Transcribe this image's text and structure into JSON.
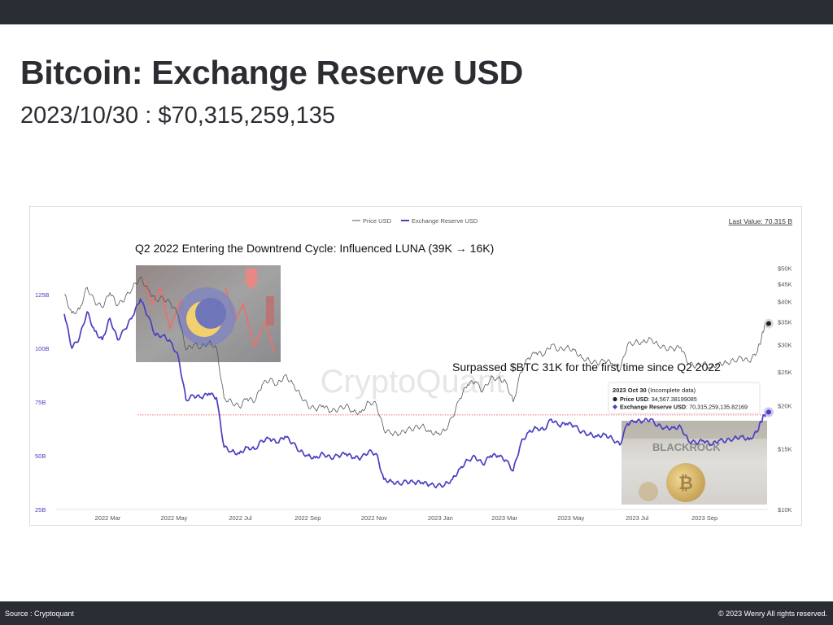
{
  "page": {
    "title": "Bitcoin: Exchange Reserve USD",
    "subtitle": "2023/10/30 : $70,315,259,135",
    "footer_source": "Source : Cryptoquant",
    "footer_copyright": "© 2023 Wenry All rights reserved."
  },
  "chart_data": {
    "type": "line",
    "title": "",
    "watermark": "CryptoQuant",
    "last_value_label": "Last Value: 70.315 B",
    "legend_position": "top-center",
    "grid": false,
    "x_range": [
      "2022-01-20",
      "2023-10-30"
    ],
    "x_ticks": [
      {
        "date": "2022-03-01",
        "label": "2022 Mar"
      },
      {
        "date": "2022-05-01",
        "label": "2022 May"
      },
      {
        "date": "2022-07-01",
        "label": "2022 Jul"
      },
      {
        "date": "2022-09-01",
        "label": "2022 Sep"
      },
      {
        "date": "2022-11-01",
        "label": "2022 Nov"
      },
      {
        "date": "2023-01-01",
        "label": "2023 Jan"
      },
      {
        "date": "2023-03-01",
        "label": "2023 Mar"
      },
      {
        "date": "2023-05-01",
        "label": "2023 May"
      },
      {
        "date": "2023-07-01",
        "label": "2023 Jul"
      },
      {
        "date": "2023-09-01",
        "label": "2023 Sep"
      }
    ],
    "y_left": {
      "label": "",
      "range": [
        25,
        150
      ],
      "ticks": [
        {
          "v": 25,
          "label": "25B"
        },
        {
          "v": 50,
          "label": "50B"
        },
        {
          "v": 75,
          "label": "75B"
        },
        {
          "v": 100,
          "label": "100B"
        },
        {
          "v": 125,
          "label": "125B"
        }
      ]
    },
    "y_right": {
      "label": "",
      "scale": "log",
      "range": [
        10000,
        60000
      ],
      "ticks": [
        {
          "v": 10000,
          "label": "$10K"
        },
        {
          "v": 15000,
          "label": "$15K"
        },
        {
          "v": 20000,
          "label": "$20K"
        },
        {
          "v": 25000,
          "label": "$25K"
        },
        {
          "v": 30000,
          "label": "$30K"
        },
        {
          "v": 35000,
          "label": "$35K"
        },
        {
          "v": 40000,
          "label": "$40K"
        },
        {
          "v": 45000,
          "label": "$45K"
        },
        {
          "v": 50000,
          "label": "$50K"
        }
      ]
    },
    "series": [
      {
        "name": "Price USD",
        "color": "#555555",
        "axis": "right",
        "points": [
          [
            "2022-01-20",
            42000
          ],
          [
            "2022-01-27",
            37000
          ],
          [
            "2022-02-03",
            38000
          ],
          [
            "2022-02-10",
            44000
          ],
          [
            "2022-02-17",
            40000
          ],
          [
            "2022-02-24",
            38500
          ],
          [
            "2022-03-03",
            42500
          ],
          [
            "2022-03-10",
            39000
          ],
          [
            "2022-03-17",
            41000
          ],
          [
            "2022-03-24",
            44000
          ],
          [
            "2022-03-31",
            47000
          ],
          [
            "2022-04-07",
            43500
          ],
          [
            "2022-04-14",
            40500
          ],
          [
            "2022-04-21",
            41000
          ],
          [
            "2022-04-28",
            39500
          ],
          [
            "2022-05-05",
            36500
          ],
          [
            "2022-05-12",
            29000
          ],
          [
            "2022-05-19",
            30000
          ],
          [
            "2022-05-26",
            29500
          ],
          [
            "2022-06-02",
            30500
          ],
          [
            "2022-06-09",
            29500
          ],
          [
            "2022-06-16",
            21000
          ],
          [
            "2022-06-23",
            20500
          ],
          [
            "2022-06-30",
            19800
          ],
          [
            "2022-07-07",
            21000
          ],
          [
            "2022-07-14",
            20500
          ],
          [
            "2022-07-21",
            23000
          ],
          [
            "2022-07-28",
            23800
          ],
          [
            "2022-08-04",
            23000
          ],
          [
            "2022-08-11",
            24500
          ],
          [
            "2022-08-18",
            23200
          ],
          [
            "2022-08-25",
            21500
          ],
          [
            "2022-09-01",
            20000
          ],
          [
            "2022-09-08",
            19500
          ],
          [
            "2022-09-15",
            20000
          ],
          [
            "2022-09-22",
            19200
          ],
          [
            "2022-09-29",
            19500
          ],
          [
            "2022-10-06",
            20000
          ],
          [
            "2022-10-13",
            19200
          ],
          [
            "2022-10-20",
            19100
          ],
          [
            "2022-10-27",
            20500
          ],
          [
            "2022-11-03",
            20200
          ],
          [
            "2022-11-10",
            17000
          ],
          [
            "2022-11-17",
            16600
          ],
          [
            "2022-11-24",
            16500
          ],
          [
            "2022-12-01",
            17000
          ],
          [
            "2022-12-08",
            17200
          ],
          [
            "2022-12-15",
            17500
          ],
          [
            "2022-12-22",
            16800
          ],
          [
            "2022-12-29",
            16600
          ],
          [
            "2023-01-05",
            16900
          ],
          [
            "2023-01-12",
            18500
          ],
          [
            "2023-01-19",
            21000
          ],
          [
            "2023-01-26",
            23000
          ],
          [
            "2023-02-02",
            23500
          ],
          [
            "2023-02-09",
            22000
          ],
          [
            "2023-02-16",
            24000
          ],
          [
            "2023-02-23",
            24000
          ],
          [
            "2023-03-02",
            23500
          ],
          [
            "2023-03-09",
            20500
          ],
          [
            "2023-03-16",
            25000
          ],
          [
            "2023-03-23",
            27500
          ],
          [
            "2023-03-30",
            28500
          ],
          [
            "2023-04-06",
            28000
          ],
          [
            "2023-04-13",
            30000
          ],
          [
            "2023-04-20",
            29000
          ],
          [
            "2023-04-27",
            29500
          ],
          [
            "2023-05-04",
            29000
          ],
          [
            "2023-05-11",
            27500
          ],
          [
            "2023-05-18",
            27000
          ],
          [
            "2023-05-25",
            26500
          ],
          [
            "2023-06-01",
            27000
          ],
          [
            "2023-06-08",
            26500
          ],
          [
            "2023-06-15",
            25200
          ],
          [
            "2023-06-22",
            30000
          ],
          [
            "2023-06-29",
            30500
          ],
          [
            "2023-07-06",
            30500
          ],
          [
            "2023-07-13",
            31300
          ],
          [
            "2023-07-20",
            30000
          ],
          [
            "2023-07-27",
            29300
          ],
          [
            "2023-08-03",
            29200
          ],
          [
            "2023-08-10",
            29500
          ],
          [
            "2023-08-17",
            26500
          ],
          [
            "2023-08-24",
            26000
          ],
          [
            "2023-08-31",
            26500
          ],
          [
            "2023-09-07",
            25800
          ],
          [
            "2023-09-14",
            26500
          ],
          [
            "2023-09-21",
            26600
          ],
          [
            "2023-09-28",
            27000
          ],
          [
            "2023-10-05",
            27500
          ],
          [
            "2023-10-12",
            26800
          ],
          [
            "2023-10-19",
            28500
          ],
          [
            "2023-10-23",
            31000
          ],
          [
            "2023-10-26",
            34000
          ],
          [
            "2023-10-30",
            34567
          ]
        ]
      },
      {
        "name": "Exchange Reserve USD",
        "color": "#4a3fc1",
        "axis": "left",
        "points": [
          [
            "2022-01-20",
            116
          ],
          [
            "2022-01-27",
            100
          ],
          [
            "2022-02-03",
            105
          ],
          [
            "2022-02-10",
            117
          ],
          [
            "2022-02-17",
            108
          ],
          [
            "2022-02-24",
            104
          ],
          [
            "2022-03-03",
            114
          ],
          [
            "2022-03-10",
            104
          ],
          [
            "2022-03-17",
            109
          ],
          [
            "2022-03-24",
            115
          ],
          [
            "2022-03-31",
            123
          ],
          [
            "2022-04-07",
            115
          ],
          [
            "2022-04-14",
            106
          ],
          [
            "2022-04-21",
            106
          ],
          [
            "2022-04-28",
            103
          ],
          [
            "2022-05-05",
            96
          ],
          [
            "2022-05-12",
            76
          ],
          [
            "2022-05-19",
            78
          ],
          [
            "2022-05-26",
            77
          ],
          [
            "2022-06-02",
            79
          ],
          [
            "2022-06-09",
            77
          ],
          [
            "2022-06-16",
            54
          ],
          [
            "2022-06-23",
            52
          ],
          [
            "2022-06-30",
            51
          ],
          [
            "2022-07-07",
            54
          ],
          [
            "2022-07-14",
            53
          ],
          [
            "2022-07-21",
            57
          ],
          [
            "2022-07-28",
            58
          ],
          [
            "2022-08-04",
            56
          ],
          [
            "2022-08-11",
            59
          ],
          [
            "2022-08-18",
            56
          ],
          [
            "2022-08-25",
            52
          ],
          [
            "2022-09-01",
            50
          ],
          [
            "2022-09-08",
            49
          ],
          [
            "2022-09-15",
            51
          ],
          [
            "2022-09-22",
            49
          ],
          [
            "2022-09-29",
            50
          ],
          [
            "2022-10-06",
            51
          ],
          [
            "2022-10-13",
            49
          ],
          [
            "2022-10-20",
            49
          ],
          [
            "2022-10-27",
            52
          ],
          [
            "2022-11-03",
            51
          ],
          [
            "2022-11-10",
            39
          ],
          [
            "2022-11-17",
            38
          ],
          [
            "2022-11-24",
            37
          ],
          [
            "2022-12-01",
            38
          ],
          [
            "2022-12-08",
            37.5
          ],
          [
            "2022-12-15",
            37.5
          ],
          [
            "2022-12-22",
            36.5
          ],
          [
            "2022-12-29",
            36
          ],
          [
            "2023-01-05",
            36.5
          ],
          [
            "2023-01-12",
            39
          ],
          [
            "2023-01-19",
            44
          ],
          [
            "2023-01-26",
            48
          ],
          [
            "2023-02-02",
            49.5
          ],
          [
            "2023-02-09",
            46
          ],
          [
            "2023-02-16",
            50
          ],
          [
            "2023-02-23",
            50
          ],
          [
            "2023-03-02",
            48
          ],
          [
            "2023-03-09",
            43
          ],
          [
            "2023-03-16",
            56
          ],
          [
            "2023-03-23",
            61
          ],
          [
            "2023-03-30",
            63
          ],
          [
            "2023-04-06",
            62
          ],
          [
            "2023-04-13",
            67
          ],
          [
            "2023-04-20",
            64
          ],
          [
            "2023-04-27",
            65
          ],
          [
            "2023-05-04",
            64
          ],
          [
            "2023-05-11",
            61
          ],
          [
            "2023-05-18",
            60
          ],
          [
            "2023-05-25",
            59
          ],
          [
            "2023-06-01",
            60
          ],
          [
            "2023-06-08",
            58
          ],
          [
            "2023-06-15",
            55
          ],
          [
            "2023-06-22",
            65
          ],
          [
            "2023-06-29",
            66
          ],
          [
            "2023-07-06",
            66
          ],
          [
            "2023-07-13",
            67
          ],
          [
            "2023-07-20",
            64
          ],
          [
            "2023-07-27",
            63
          ],
          [
            "2023-08-03",
            63
          ],
          [
            "2023-08-10",
            63.5
          ],
          [
            "2023-08-17",
            57
          ],
          [
            "2023-08-24",
            56
          ],
          [
            "2023-08-31",
            57
          ],
          [
            "2023-09-07",
            55
          ],
          [
            "2023-09-14",
            57
          ],
          [
            "2023-09-21",
            57
          ],
          [
            "2023-09-28",
            58
          ],
          [
            "2023-10-05",
            59
          ],
          [
            "2023-10-12",
            57.5
          ],
          [
            "2023-10-19",
            61
          ],
          [
            "2023-10-23",
            66
          ],
          [
            "2023-10-26",
            69
          ],
          [
            "2023-10-30",
            70.3
          ]
        ]
      }
    ],
    "reference_line": {
      "axis": "left",
      "value": 69,
      "color": "#e0474c",
      "style": "dotted"
    },
    "annotations": [
      {
        "text": "Q2 2022 Entering the Downtrend Cycle: Influenced LUNA (39K → 16K)",
        "near": "2022-03-20"
      },
      {
        "text": "Surpassed $BTC 31K for the first time since Q2 2022",
        "near": "2023-10-25"
      }
    ],
    "tooltip": {
      "date_label": "2023 Oct 30",
      "note": "(Incomplete data)",
      "rows": [
        {
          "label": "Price USD",
          "value": "34,567.38199085",
          "color": "#222222"
        },
        {
          "label": "Exchange Reserve USD",
          "value": "70,315,259,135.82169",
          "color": "#4a3fc1"
        }
      ]
    },
    "images": [
      {
        "name": "luna-crash-image"
      },
      {
        "name": "blackrock-bitcoin-image"
      }
    ]
  }
}
